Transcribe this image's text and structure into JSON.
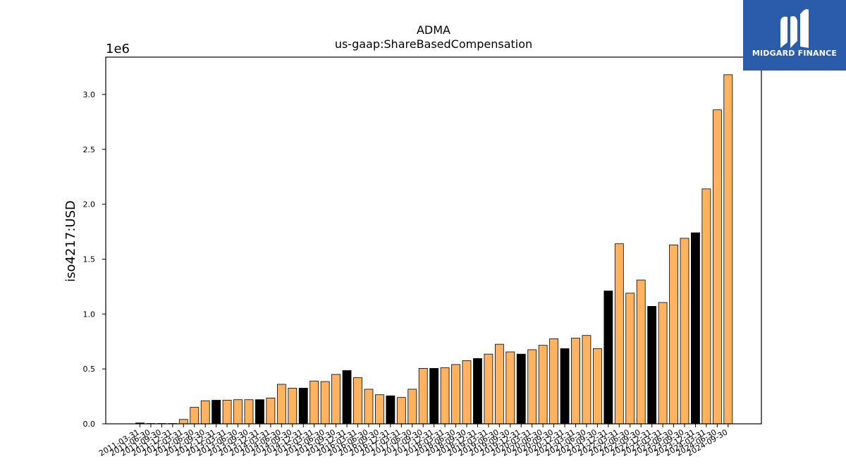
{
  "chart_data": {
    "type": "bar",
    "title": "ADMA",
    "subtitle": "us-gaap:ShareBasedCompensation",
    "ylabel": "iso4217:USD",
    "xlabel": "",
    "y_scale_label": "1e6",
    "y_scale": 1000000,
    "ylim": [
      0,
      3340000
    ],
    "yticks": [
      0,
      500000,
      1000000,
      1500000,
      2000000,
      2500000,
      3000000
    ],
    "ytick_labels": [
      "0.0",
      "0.5",
      "1.0",
      "1.5",
      "2.0",
      "2.5",
      "3.0"
    ],
    "grid": false,
    "colors": {
      "quarterly": "#ffb360",
      "annual": "#000000",
      "edge": "#000000"
    },
    "categories": [
      "2011-03-31",
      "2011-06-30",
      "2011-09-30",
      "2011-12-31",
      "2012-03-31",
      "2012-06-30",
      "2012-09-30",
      "2012-12-31",
      "2013-03-31",
      "2013-06-30",
      "2013-09-30",
      "2013-12-31",
      "2014-03-31",
      "2014-06-30",
      "2014-09-30",
      "2014-12-31",
      "2015-03-31",
      "2015-06-30",
      "2015-09-30",
      "2015-12-31",
      "2016-03-31",
      "2016-06-30",
      "2016-09-30",
      "2016-12-31",
      "2017-03-31",
      "2017-06-30",
      "2017-09-30",
      "2017-12-31",
      "2018-03-31",
      "2018-06-30",
      "2018-09-30",
      "2018-12-31",
      "2019-03-31",
      "2019-06-30",
      "2019-09-30",
      "2019-12-31",
      "2020-03-31",
      "2020-06-30",
      "2020-09-30",
      "2020-12-31",
      "2021-03-31",
      "2021-06-30",
      "2021-09-30",
      "2021-12-31",
      "2022-03-31",
      "2022-06-30",
      "2022-09-30",
      "2022-12-31",
      "2023-03-31",
      "2023-06-30",
      "2023-09-30",
      "2023-12-31",
      "2024-03-31",
      "2024-06-30",
      "2024-09-30"
    ],
    "values": [
      8000,
      3000,
      3000,
      3000,
      40000,
      150000,
      210000,
      215000,
      215000,
      220000,
      220000,
      220000,
      235000,
      360000,
      325000,
      325000,
      390000,
      385000,
      450000,
      485000,
      420000,
      315000,
      265000,
      255000,
      240000,
      315000,
      505000,
      505000,
      510000,
      540000,
      575000,
      595000,
      635000,
      725000,
      655000,
      635000,
      675000,
      715000,
      775000,
      685000,
      780000,
      805000,
      685000,
      1210000,
      1640000,
      1190000,
      1310000,
      1070000,
      1105000,
      1630000,
      1690000,
      1740000,
      2140000,
      2860000,
      3180000
    ],
    "bar_kind": [
      "annual",
      "quarterly",
      "quarterly",
      "quarterly",
      "quarterly",
      "quarterly",
      "quarterly",
      "annual",
      "quarterly",
      "quarterly",
      "quarterly",
      "annual",
      "quarterly",
      "quarterly",
      "quarterly",
      "annual",
      "quarterly",
      "quarterly",
      "quarterly",
      "annual",
      "quarterly",
      "quarterly",
      "quarterly",
      "annual",
      "quarterly",
      "quarterly",
      "quarterly",
      "annual",
      "quarterly",
      "quarterly",
      "quarterly",
      "annual",
      "quarterly",
      "quarterly",
      "quarterly",
      "annual",
      "quarterly",
      "quarterly",
      "quarterly",
      "annual",
      "quarterly",
      "quarterly",
      "quarterly",
      "annual",
      "quarterly",
      "quarterly",
      "quarterly",
      "annual",
      "quarterly",
      "quarterly",
      "quarterly",
      "annual",
      "quarterly",
      "quarterly",
      "quarterly"
    ]
  },
  "logo": {
    "text": "MIDGARD FINANCE",
    "bg_color": "#2b5cac"
  }
}
